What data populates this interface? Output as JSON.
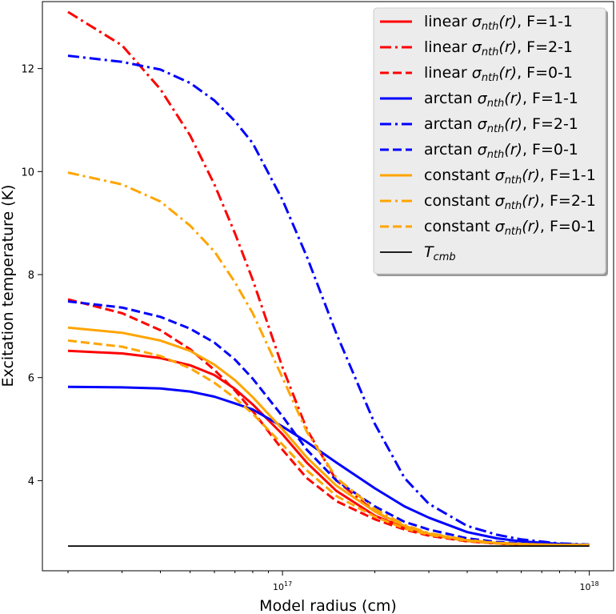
{
  "chart_data": {
    "type": "line",
    "xlabel": "Model radius (cm)",
    "ylabel": "Excitation temperature (K)",
    "xscale": "log",
    "xlim": [
      1.65e+16,
      1.2e+18
    ],
    "ylim": [
      2.25,
      13.3
    ],
    "x_tick_base": "10",
    "x_ticks": [
      {
        "value": 1e+17,
        "exp": "17"
      },
      {
        "value": 1e+18,
        "exp": "18"
      }
    ],
    "y_ticks": [
      4,
      6,
      8,
      10,
      12
    ],
    "x": [
      2e+16,
      3e+16,
      4e+16,
      5e+16,
      6e+16,
      7e+16,
      8e+16,
      1e+17,
      1.2e+17,
      1.5e+17,
      2e+17,
      2.5e+17,
      3e+17,
      4e+17,
      5e+17,
      6e+17,
      8e+17,
      1e+18
    ],
    "series": [
      {
        "pre": "linear ",
        "post": ", F=1-1",
        "color": "#ff0000",
        "dash": "solid",
        "values": [
          6.52,
          6.47,
          6.38,
          6.24,
          6.05,
          5.78,
          5.48,
          4.9,
          4.35,
          3.8,
          3.32,
          3.08,
          2.95,
          2.83,
          2.78,
          2.76,
          2.75,
          2.75
        ]
      },
      {
        "pre": "linear ",
        "post": ", F=2-1",
        "color": "#ff0000",
        "dash": "dashdot",
        "values": [
          13.1,
          12.45,
          11.6,
          10.7,
          9.75,
          8.8,
          7.9,
          6.2,
          5.0,
          4.0,
          3.4,
          3.1,
          2.95,
          2.84,
          2.79,
          2.77,
          2.75,
          2.75
        ]
      },
      {
        "pre": "linear ",
        "post": ", F=0-1",
        "color": "#ff0000",
        "dash": "dashed",
        "values": [
          7.52,
          7.25,
          6.92,
          6.55,
          6.15,
          5.75,
          5.35,
          4.6,
          4.05,
          3.6,
          3.25,
          3.05,
          2.93,
          2.82,
          2.78,
          2.76,
          2.75,
          2.75
        ]
      },
      {
        "pre": "arctan ",
        "post": ", F=1-1",
        "color": "#0000ff",
        "dash": "solid",
        "values": [
          5.82,
          5.81,
          5.79,
          5.73,
          5.63,
          5.5,
          5.38,
          5.05,
          4.75,
          4.35,
          3.85,
          3.5,
          3.28,
          3.0,
          2.88,
          2.82,
          2.77,
          2.75
        ]
      },
      {
        "pre": "arctan ",
        "post": ", F=2-1",
        "color": "#0000ff",
        "dash": "dashdot",
        "values": [
          12.25,
          12.13,
          11.98,
          11.72,
          11.38,
          10.98,
          10.55,
          9.45,
          8.35,
          6.85,
          5.1,
          4.05,
          3.55,
          3.12,
          2.95,
          2.86,
          2.78,
          2.76
        ]
      },
      {
        "pre": "arctan ",
        "post": ", F=0-1",
        "color": "#0000ff",
        "dash": "dashed",
        "values": [
          7.48,
          7.36,
          7.18,
          6.95,
          6.68,
          6.35,
          5.98,
          5.25,
          4.6,
          4.0,
          3.5,
          3.2,
          3.05,
          2.88,
          2.81,
          2.78,
          2.76,
          2.75
        ]
      },
      {
        "pre": "constant ",
        "post": ", F=1-1",
        "color": "#ffa500",
        "dash": "solid",
        "values": [
          6.97,
          6.87,
          6.72,
          6.52,
          6.25,
          5.95,
          5.62,
          5.0,
          4.45,
          3.9,
          3.4,
          3.12,
          2.97,
          2.84,
          2.79,
          2.77,
          2.75,
          2.75
        ]
      },
      {
        "pre": "constant ",
        "post": ", F=2-1",
        "color": "#ffa500",
        "dash": "dashdot",
        "values": [
          9.98,
          9.75,
          9.42,
          8.95,
          8.45,
          7.85,
          7.25,
          6.0,
          4.95,
          4.05,
          3.45,
          3.14,
          2.98,
          2.85,
          2.79,
          2.77,
          2.75,
          2.75
        ]
      },
      {
        "pre": "constant ",
        "post": ", F=0-1",
        "color": "#ffa500",
        "dash": "dashed",
        "values": [
          6.72,
          6.6,
          6.42,
          6.18,
          5.9,
          5.6,
          5.3,
          4.7,
          4.2,
          3.7,
          3.3,
          3.07,
          2.95,
          2.83,
          2.78,
          2.76,
          2.75,
          2.75
        ]
      },
      {
        "pre": "",
        "post": "",
        "label_math": "T",
        "label_sub": "cmb",
        "color": "#000000",
        "dash": "solid",
        "values": [
          2.73,
          2.73,
          2.73,
          2.73,
          2.73,
          2.73,
          2.73,
          2.73,
          2.73,
          2.73,
          2.73,
          2.73,
          2.73,
          2.73,
          2.73,
          2.73,
          2.73,
          2.73
        ]
      }
    ],
    "legend": {
      "placement": "upper-right",
      "sigma_symbol": "σ",
      "sigma_sub": "nth",
      "sigma_arg": "(r)"
    }
  }
}
